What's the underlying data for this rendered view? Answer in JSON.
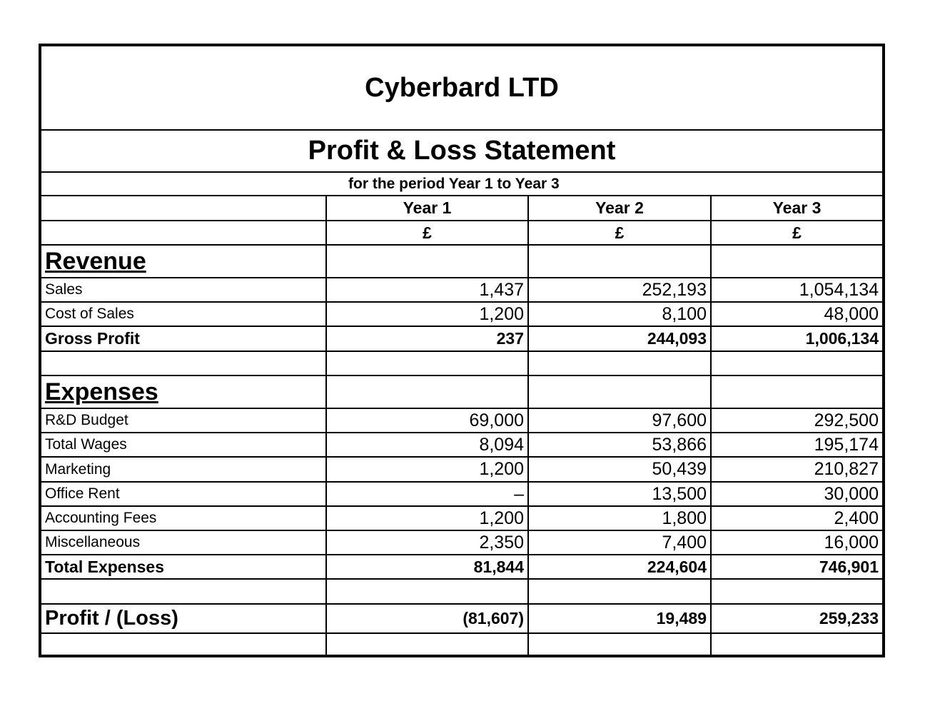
{
  "header": {
    "company": "Cyberbard LTD",
    "statement_title": "Profit & Loss Statement",
    "period": "for the period Year 1 to Year 3"
  },
  "columns": {
    "years": [
      "Year 1",
      "Year 2",
      "Year 3"
    ],
    "currency": [
      "£",
      "£",
      "£"
    ]
  },
  "revenue": {
    "heading": "Revenue",
    "rows": [
      {
        "label": "Sales",
        "values": [
          "1,437",
          "252,193",
          "1,054,134"
        ]
      },
      {
        "label": "Cost of Sales",
        "values": [
          "1,200",
          "8,100",
          "48,000"
        ]
      }
    ],
    "total": {
      "label": "Gross Profit",
      "values": [
        "237",
        "244,093",
        "1,006,134"
      ]
    }
  },
  "expenses": {
    "heading": "Expenses",
    "rows": [
      {
        "label": "R&D Budget",
        "values": [
          "69,000",
          "97,600",
          "292,500"
        ]
      },
      {
        "label": "Total Wages",
        "values": [
          "8,094",
          "53,866",
          "195,174"
        ]
      },
      {
        "label": "Marketing",
        "values": [
          "1,200",
          "50,439",
          "210,827"
        ]
      },
      {
        "label": "Office Rent",
        "values": [
          "–",
          "13,500",
          "30,000"
        ]
      },
      {
        "label": "Accounting Fees",
        "values": [
          "1,200",
          "1,800",
          "2,400"
        ]
      },
      {
        "label": "Miscellaneous",
        "values": [
          "2,350",
          "7,400",
          "16,000"
        ]
      }
    ],
    "total": {
      "label": "Total Expenses",
      "values": [
        "81,844",
        "224,604",
        "746,901"
      ]
    }
  },
  "profit_loss": {
    "label": "Profit / (Loss)",
    "values": [
      "(81,607)",
      "19,489",
      "259,233"
    ]
  }
}
